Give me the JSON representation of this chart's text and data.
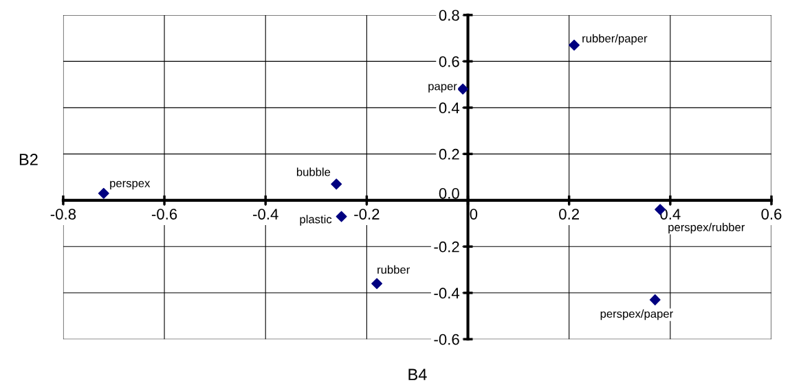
{
  "chart_data": {
    "type": "scatter",
    "xlabel": "B4",
    "ylabel": "B2",
    "series": [
      {
        "color": "#000080",
        "x": [
          -0.72,
          -0.26,
          -0.25,
          -0.18,
          -0.01,
          0.21,
          0.38,
          0.37
        ],
        "values": [
          0.03,
          0.07,
          -0.07,
          -0.36,
          0.48,
          0.67,
          -0.04,
          -0.43
        ]
      }
    ],
    "annotations": [
      {
        "text": "perspex",
        "x": -0.72,
        "y": 0.03
      },
      {
        "text": "bubble",
        "x": -0.26,
        "y": 0.07
      },
      {
        "text": "plastic",
        "x": -0.25,
        "y": -0.07
      },
      {
        "text": "rubber",
        "x": -0.18,
        "y": -0.36
      },
      {
        "text": "paper",
        "x": -0.01,
        "y": 0.48
      },
      {
        "text": "rubber/paper",
        "x": 0.21,
        "y": 0.67
      },
      {
        "text": "perspex/rubber",
        "x": 0.38,
        "y": -0.04
      },
      {
        "text": "perspex/paper",
        "x": 0.37,
        "y": -0.43
      }
    ],
    "xlim": [
      -0.8,
      0.6
    ],
    "xticks": [
      -0.8,
      -0.6,
      -0.4,
      -0.2,
      0,
      0.2,
      0.4,
      0.6
    ],
    "ylim": [
      -0.6,
      0.8
    ],
    "yticks": [
      -0.6,
      -0.4,
      -0.2,
      {
        "value": 0,
        "label": "0.0"
      },
      0.2,
      0.4,
      0.6,
      0.8
    ],
    "grid": true,
    "marker": "diamond"
  }
}
